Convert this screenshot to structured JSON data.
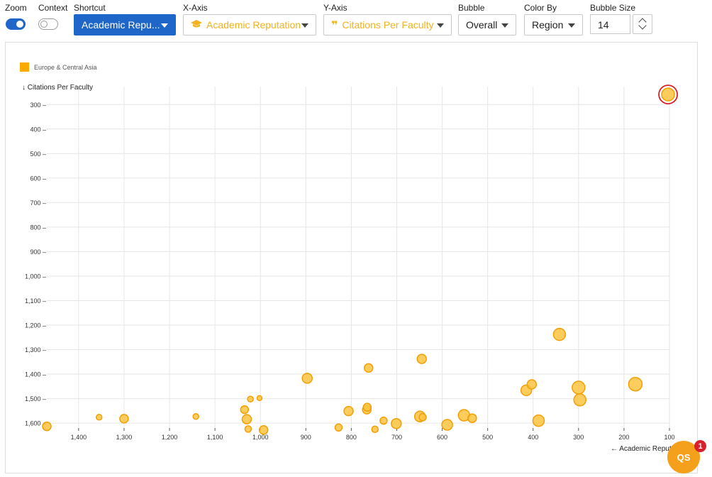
{
  "toolbar": {
    "zoom_label": "Zoom",
    "context_label": "Context",
    "shortcut_label": "Shortcut",
    "shortcut_value": "Academic Repu...",
    "xaxis_label": "X-Axis",
    "xaxis_value": "Academic Reputation",
    "yaxis_label": "Y-Axis",
    "yaxis_value": "Citations Per Faculty",
    "bubble_label": "Bubble",
    "bubble_value": "Overall",
    "colorby_label": "Color By",
    "colorby_value": "Region",
    "bubblesize_label": "Bubble Size",
    "bubblesize_value": "14",
    "zoom_on": true,
    "context_on": false
  },
  "badge": {
    "text": "QS",
    "count": "1"
  },
  "colors": {
    "accent": "#1f66c9",
    "bubble_fill": "#fcc33f",
    "bubble_stroke": "#f29f05",
    "legend": "#fbaa00",
    "highlight": "#d8202a"
  },
  "chart_data": {
    "type": "scatter",
    "legend": [
      {
        "name": "Europe & Central Asia",
        "color": "#fbaa00"
      }
    ],
    "legend_position": "top-left",
    "xlabel": "← Academic Reputati",
    "ylabel": "↓ Citations Per Faculty",
    "x_reversed": true,
    "y_reversed": true,
    "xlim": [
      1470,
      100
    ],
    "ylim": [
      250,
      1620
    ],
    "xticks": [
      1400,
      1300,
      1200,
      1100,
      1000,
      900,
      800,
      700,
      600,
      500,
      400,
      300,
      200,
      100
    ],
    "xtick_labels": [
      "1,400",
      "1,300",
      "1,200",
      "1,100",
      "1,000",
      "900",
      "800",
      "700",
      "600",
      "500",
      "400",
      "300",
      "200",
      "100"
    ],
    "yticks": [
      300,
      400,
      500,
      600,
      700,
      800,
      900,
      1000,
      1100,
      1200,
      1300,
      1400,
      1500,
      1600
    ],
    "ytick_labels": [
      "300 –",
      "400 –",
      "500 –",
      "600 –",
      "700 –",
      "800 –",
      "900 –",
      "1,000 –",
      "1,100 –",
      "1,200 –",
      "1,300 –",
      "1,400 –",
      "1,500 –",
      "1,600 –"
    ],
    "grid": true,
    "series": [
      {
        "name": "Europe & Central Asia",
        "points": [
          {
            "x": 1470,
            "y": 1613,
            "r": 6
          },
          {
            "x": 1355,
            "y": 1576,
            "r": 4
          },
          {
            "x": 1300,
            "y": 1582,
            "r": 6
          },
          {
            "x": 1142,
            "y": 1573,
            "r": 4
          },
          {
            "x": 1035,
            "y": 1545,
            "r": 5.5
          },
          {
            "x": 1030,
            "y": 1584,
            "r": 6.5
          },
          {
            "x": 1027,
            "y": 1624,
            "r": 4.5
          },
          {
            "x": 1022,
            "y": 1502,
            "r": 4
          },
          {
            "x": 1002,
            "y": 1498,
            "r": 3.5
          },
          {
            "x": 993,
            "y": 1628,
            "r": 6
          },
          {
            "x": 897,
            "y": 1417,
            "r": 7
          },
          {
            "x": 828,
            "y": 1618,
            "r": 5
          },
          {
            "x": 806,
            "y": 1551,
            "r": 6.5
          },
          {
            "x": 766,
            "y": 1545,
            "r": 6
          },
          {
            "x": 765,
            "y": 1535,
            "r": 5.5
          },
          {
            "x": 762,
            "y": 1375,
            "r": 6
          },
          {
            "x": 748,
            "y": 1625,
            "r": 4.5
          },
          {
            "x": 729,
            "y": 1590,
            "r": 5
          },
          {
            "x": 701,
            "y": 1602,
            "r": 7
          },
          {
            "x": 649,
            "y": 1573,
            "r": 7.5
          },
          {
            "x": 645,
            "y": 1338,
            "r": 6.5
          },
          {
            "x": 643,
            "y": 1576,
            "r": 5
          },
          {
            "x": 589,
            "y": 1607,
            "r": 7.5
          },
          {
            "x": 552,
            "y": 1568,
            "r": 8
          },
          {
            "x": 534,
            "y": 1580,
            "r": 6
          },
          {
            "x": 415,
            "y": 1466,
            "r": 7.5
          },
          {
            "x": 403,
            "y": 1442,
            "r": 6.5
          },
          {
            "x": 388,
            "y": 1590,
            "r": 8
          },
          {
            "x": 342,
            "y": 1238,
            "r": 8.5
          },
          {
            "x": 300,
            "y": 1455,
            "r": 9
          },
          {
            "x": 297,
            "y": 1505,
            "r": 8.5
          },
          {
            "x": 175,
            "y": 1441,
            "r": 9.5
          },
          {
            "x": 103,
            "y": 259,
            "r": 9,
            "highlighted": true
          }
        ]
      }
    ]
  }
}
